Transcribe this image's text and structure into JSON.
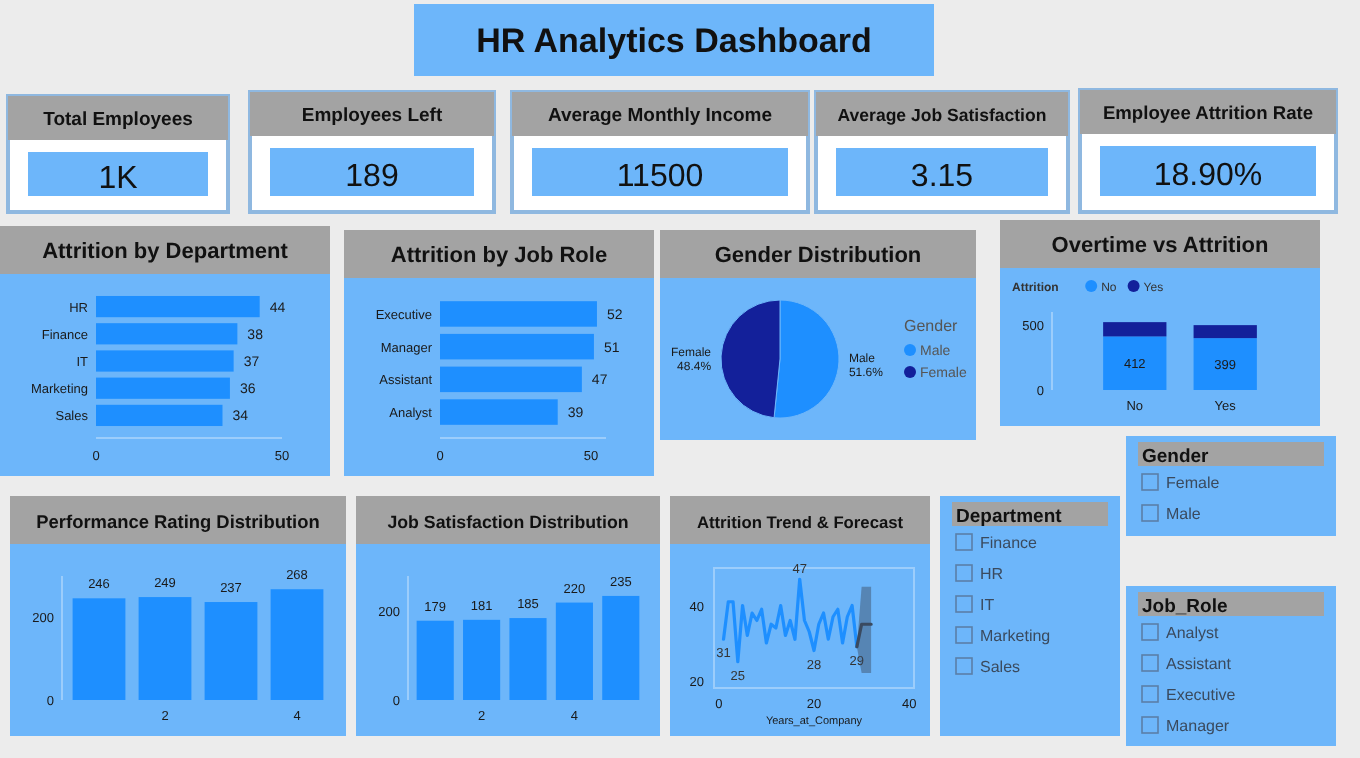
{
  "chart_data": [
    {
      "type": "other",
      "title": "HR Analytics Dashboard"
    },
    {
      "type": "other",
      "title": "Total Employees",
      "annotations": [
        "1K"
      ]
    },
    {
      "type": "other",
      "title": "Employees Left",
      "annotations": [
        "189"
      ]
    },
    {
      "type": "other",
      "title": "Average Monthly Income",
      "annotations": [
        "11500"
      ]
    },
    {
      "type": "other",
      "title": "Average Job Satisfaction",
      "annotations": [
        "3.15"
      ]
    },
    {
      "type": "other",
      "title": "Employee Attrition Rate",
      "annotations": [
        "18.90%"
      ]
    },
    {
      "type": "bar",
      "title": "Attrition by Department",
      "orientation": "horizontal",
      "categories": [
        "HR",
        "Finance",
        "IT",
        "Marketing",
        "Sales"
      ],
      "values": [
        44,
        38,
        37,
        36,
        34
      ],
      "color": "#1e8fff",
      "xlim": [
        0,
        50
      ],
      "xticks": [
        0,
        50
      ],
      "data_labels": true
    },
    {
      "type": "bar",
      "title": "Attrition by Job Role",
      "orientation": "horizontal",
      "categories": [
        "Executive",
        "Manager",
        "Assistant",
        "Analyst"
      ],
      "values": [
        52,
        51,
        47,
        39
      ],
      "color": "#1e8fff",
      "xlim": [
        0,
        55
      ],
      "xticks": [
        0,
        50
      ],
      "data_labels": true
    },
    {
      "type": "pie",
      "title": "Gender Distribution",
      "categories": [
        "Male",
        "Female"
      ],
      "values": [
        51.6,
        48.4
      ],
      "colors": [
        "#1e8fff",
        "#13209a"
      ],
      "value_labels": [
        "51.6%",
        "48.4%"
      ],
      "legend": "right",
      "legend_title": "Gender"
    },
    {
      "type": "bar",
      "title": "Overtime vs Attrition",
      "stacked": true,
      "categories": [
        "No",
        "Yes"
      ],
      "legend": "top left",
      "legend_title": "Attrition",
      "ylim": [
        0,
        600
      ],
      "yticks": [
        0,
        500
      ],
      "series": [
        {
          "name": "No",
          "color": "#1e8fff",
          "values": [
            412,
            399
          ],
          "value_labels": [
            "412",
            "399"
          ]
        },
        {
          "name": "Yes",
          "color": "#13209a",
          "values": [
            110,
            100
          ]
        }
      ]
    },
    {
      "type": "bar",
      "title": "Performance Rating Distribution",
      "x": [
        1,
        2,
        3,
        4
      ],
      "values": [
        246,
        249,
        237,
        268
      ],
      "color": "#1e8fff",
      "xlim": [
        0.5,
        4.5
      ],
      "xticks": [
        2,
        4
      ],
      "ylim": [
        0,
        300
      ],
      "yticks": [
        0,
        200
      ],
      "data_labels": true
    },
    {
      "type": "bar",
      "title": "Job Satisfaction Distribution",
      "x": [
        1,
        2,
        3,
        4,
        5
      ],
      "values": [
        179,
        181,
        185,
        220,
        235
      ],
      "color": "#1e8fff",
      "xlim": [
        0.5,
        5.5
      ],
      "xticks": [
        2,
        4
      ],
      "ylim": [
        0,
        280
      ],
      "yticks": [
        0,
        200
      ],
      "data_labels": true
    },
    {
      "type": "line",
      "title": "Attrition Trend & Forecast",
      "xlabel": "Years_at_Company",
      "xlim": [
        -1,
        41
      ],
      "xticks": [
        0,
        20,
        40
      ],
      "ylim": [
        18,
        50
      ],
      "yticks": [
        20,
        40
      ],
      "series": [
        {
          "color": "#1e8fff",
          "x": [
            1,
            2,
            3,
            4,
            5,
            6,
            7,
            8,
            9,
            10,
            11,
            12,
            13,
            14,
            15,
            16,
            17,
            18,
            19,
            20,
            21,
            22,
            23,
            24,
            25,
            26,
            27,
            28,
            29
          ],
          "values": [
            31,
            41,
            41,
            25,
            40,
            32,
            38,
            36,
            39,
            30,
            35,
            34,
            40,
            32,
            36,
            31,
            47,
            36,
            33,
            28,
            35,
            38,
            31,
            37,
            39,
            30,
            37,
            40,
            29
          ],
          "value_labels": [
            "31",
            null,
            null,
            "25",
            null,
            null,
            null,
            null,
            null,
            null,
            null,
            null,
            null,
            null,
            null,
            null,
            "47",
            null,
            null,
            "28",
            null,
            null,
            null,
            null,
            null,
            null,
            null,
            null,
            "29"
          ]
        },
        {
          "color": "#3a4a60",
          "x": [
            29,
            30,
            32
          ],
          "values": [
            29,
            35,
            35
          ],
          "lower": [
            29,
            22,
            22
          ],
          "upper": [
            29,
            45,
            45
          ]
        }
      ]
    },
    {
      "type": "other",
      "title": "Department",
      "annotations": [
        "Finance",
        "HR",
        "IT",
        "Marketing",
        "Sales"
      ]
    },
    {
      "type": "other",
      "title": "Gender",
      "annotations": [
        "Female",
        "Male"
      ]
    },
    {
      "type": "other",
      "title": "Job_Role",
      "annotations": [
        "Analyst",
        "Assistant",
        "Executive",
        "Manager"
      ]
    }
  ]
}
